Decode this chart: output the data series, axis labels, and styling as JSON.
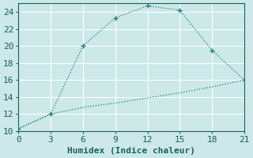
{
  "xlabel": "Humidex (Indice chaleur)",
  "bg_color": "#cce8e8",
  "grid_color": "#ffffff",
  "line_color": "#1a7a6e",
  "line1_x": [
    0,
    3,
    6,
    9,
    12,
    15,
    18,
    21
  ],
  "line1_y": [
    10.3,
    12.0,
    20.0,
    23.3,
    24.7,
    24.2,
    19.5,
    16.0
  ],
  "line2_x": [
    0,
    3,
    6,
    9,
    12,
    15,
    18,
    21
  ],
  "line2_y": [
    10.3,
    12.0,
    12.8,
    13.3,
    13.9,
    14.5,
    15.2,
    16.0
  ],
  "xlim": [
    0,
    21
  ],
  "ylim": [
    10,
    25
  ],
  "xticks": [
    0,
    3,
    6,
    9,
    12,
    15,
    18,
    21
  ],
  "yticks": [
    10,
    12,
    14,
    16,
    18,
    20,
    22,
    24
  ],
  "xlabel_fontsize": 8,
  "tick_fontsize": 8,
  "tick_color": "#1a6060"
}
